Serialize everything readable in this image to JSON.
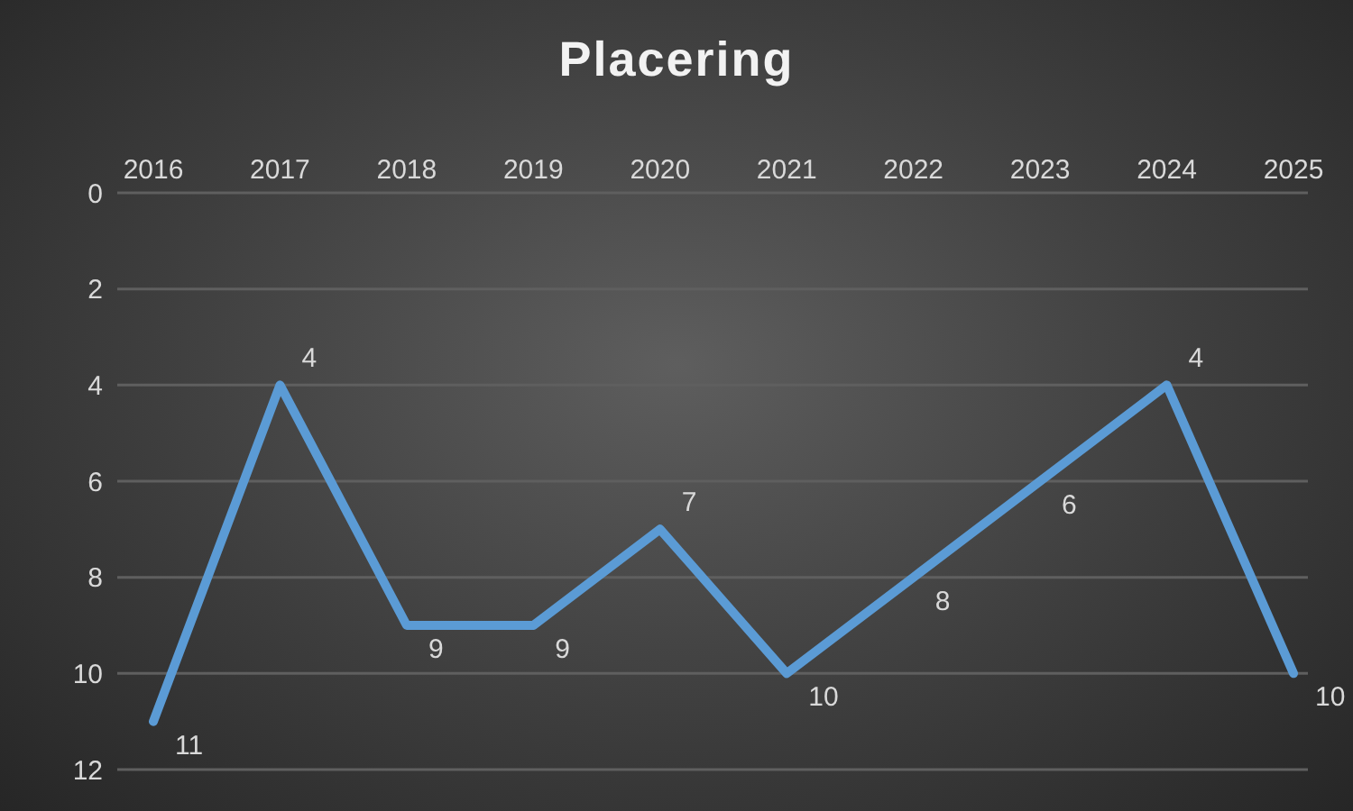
{
  "chart_data": {
    "type": "line",
    "title": "Placering",
    "categories": [
      "2016",
      "2017",
      "2018",
      "2019",
      "2020",
      "2021",
      "2022",
      "2023",
      "2024",
      "2025"
    ],
    "series": [
      {
        "color": "#5b9bd5",
        "values": [
          11,
          4,
          9,
          9,
          7,
          10,
          8,
          6,
          4,
          10
        ]
      }
    ],
    "ylim": [
      12,
      0
    ],
    "yticks": [
      0,
      2,
      4,
      6,
      8,
      10,
      12
    ],
    "grid": "y",
    "data_labels": true,
    "marker": "none",
    "line_style": "solid",
    "legend": false
  }
}
